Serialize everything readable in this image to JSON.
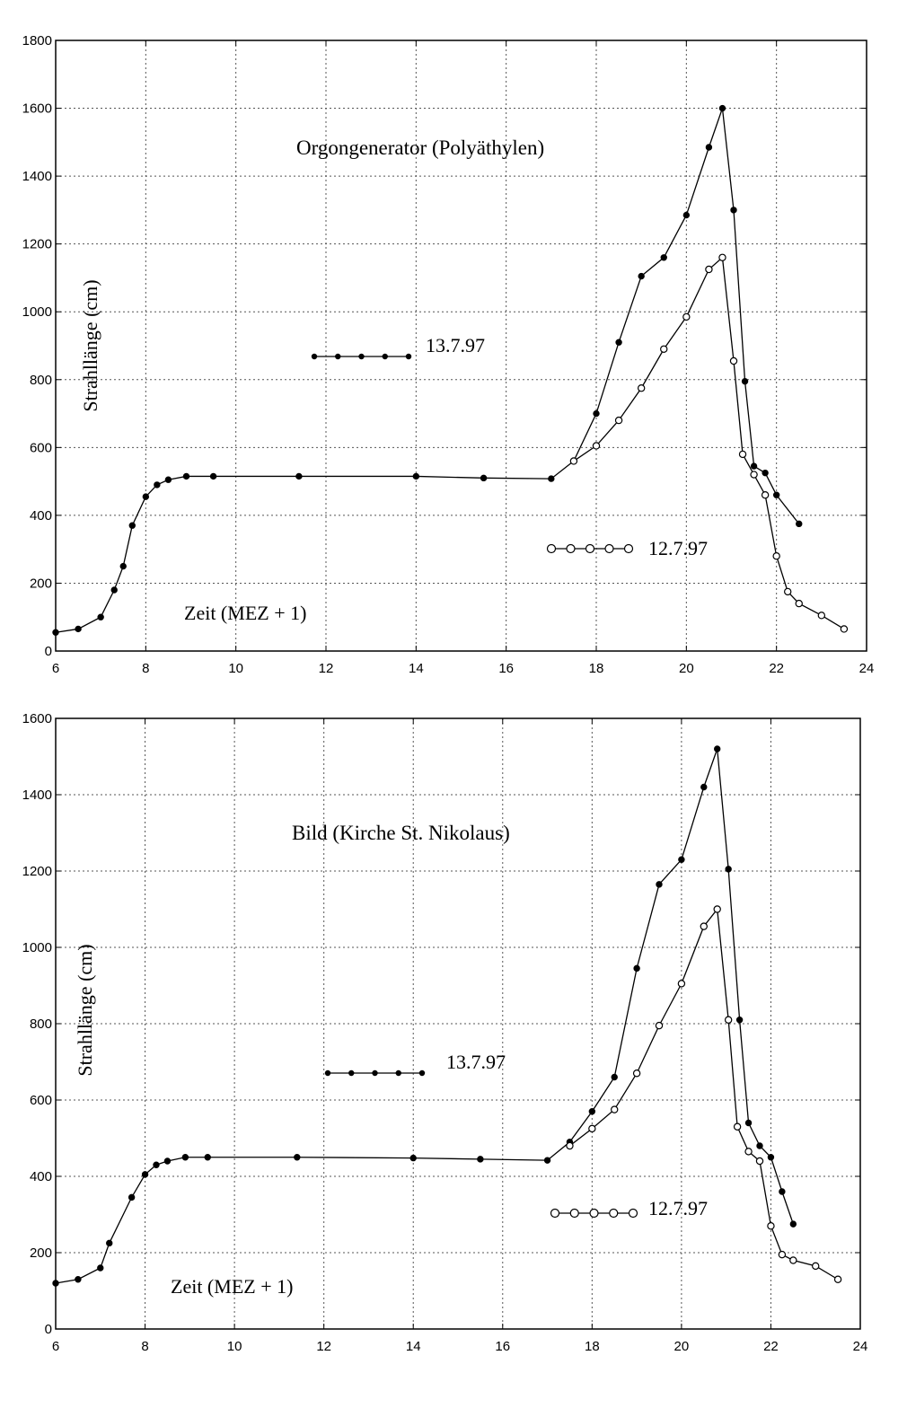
{
  "chart_data": [
    {
      "type": "line",
      "title": "Orgongenerator (Polyäthylen)",
      "ylabel": "Strahllänge (cm)",
      "xlabel": "Zeit (MEZ + 1)",
      "xlim": [
        6,
        24
      ],
      "ylim": [
        0,
        1800
      ],
      "xticks": [
        "6",
        "8",
        "10",
        "12",
        "14",
        "16",
        "18",
        "20",
        "22",
        "24"
      ],
      "yticks": [
        "0",
        "200",
        "400",
        "600",
        "800",
        "1000",
        "1200",
        "1400",
        "1600",
        "1800"
      ],
      "grid": true,
      "series": [
        {
          "name": "13.7.97",
          "marker": "filled",
          "x": [
            6,
            6.5,
            7,
            7.3,
            7.5,
            7.7,
            8,
            8.25,
            8.5,
            8.9,
            9.5,
            11.4,
            14,
            15.5,
            17,
            17.5,
            18,
            18.5,
            19,
            19.5,
            20,
            20.5,
            20.8,
            21.05,
            21.3,
            21.5,
            21.75,
            22,
            22.5
          ],
          "y": [
            55,
            65,
            100,
            180,
            250,
            370,
            455,
            490,
            505,
            515,
            515,
            515,
            515,
            510,
            508,
            560,
            700,
            910,
            1105,
            1160,
            1285,
            1485,
            1600,
            1300,
            795,
            545,
            525,
            460,
            375
          ]
        },
        {
          "name": "12.7.97",
          "marker": "open",
          "x": [
            17.5,
            18,
            18.5,
            19,
            19.5,
            20,
            20.5,
            20.8,
            21.05,
            21.25,
            21.5,
            21.75,
            22,
            22.25,
            22.5,
            23,
            23.5
          ],
          "y": [
            560,
            605,
            680,
            775,
            890,
            985,
            1125,
            1160,
            855,
            580,
            520,
            460,
            280,
            175,
            140,
            105,
            65
          ]
        }
      ],
      "legend": [
        {
          "label": "13.7.97",
          "marker": "filled"
        },
        {
          "label": "12.7.97",
          "marker": "open"
        }
      ]
    },
    {
      "type": "line",
      "title": "Bild (Kirche St. Nikolaus)",
      "ylabel": "Strahllänge (cm)",
      "xlabel": "Zeit (MEZ + 1)",
      "xlim": [
        6,
        24
      ],
      "ylim": [
        0,
        1600
      ],
      "xticks": [
        "6",
        "8",
        "10",
        "12",
        "14",
        "16",
        "18",
        "20",
        "22",
        "24"
      ],
      "yticks": [
        "0",
        "200",
        "400",
        "600",
        "800",
        "1000",
        "1200",
        "1400",
        "1600"
      ],
      "grid": true,
      "series": [
        {
          "name": "13.7.97",
          "marker": "filled",
          "x": [
            6,
            6.5,
            7,
            7.2,
            7.7,
            8,
            8.25,
            8.5,
            8.9,
            9.4,
            11.4,
            14,
            15.5,
            17,
            17.5,
            18,
            18.5,
            19,
            19.5,
            20,
            20.5,
            20.8,
            21.05,
            21.3,
            21.5,
            21.75,
            22,
            22.25,
            22.5
          ],
          "y": [
            120,
            130,
            160,
            225,
            345,
            405,
            430,
            440,
            450,
            450,
            450,
            448,
            445,
            442,
            490,
            570,
            660,
            945,
            1165,
            1230,
            1420,
            1520,
            1205,
            810,
            540,
            480,
            450,
            360,
            275
          ]
        },
        {
          "name": "12.7.97",
          "marker": "open",
          "x": [
            17.5,
            18,
            18.5,
            19,
            19.5,
            20,
            20.5,
            20.8,
            21.05,
            21.25,
            21.5,
            21.75,
            22,
            22.25,
            22.5,
            23,
            23.5
          ],
          "y": [
            480,
            525,
            575,
            670,
            795,
            905,
            1055,
            1100,
            810,
            530,
            465,
            440,
            270,
            195,
            180,
            165,
            130
          ]
        }
      ],
      "legend": [
        {
          "label": "13.7.97",
          "marker": "filled"
        },
        {
          "label": "12.7.97",
          "marker": "open"
        }
      ]
    }
  ]
}
